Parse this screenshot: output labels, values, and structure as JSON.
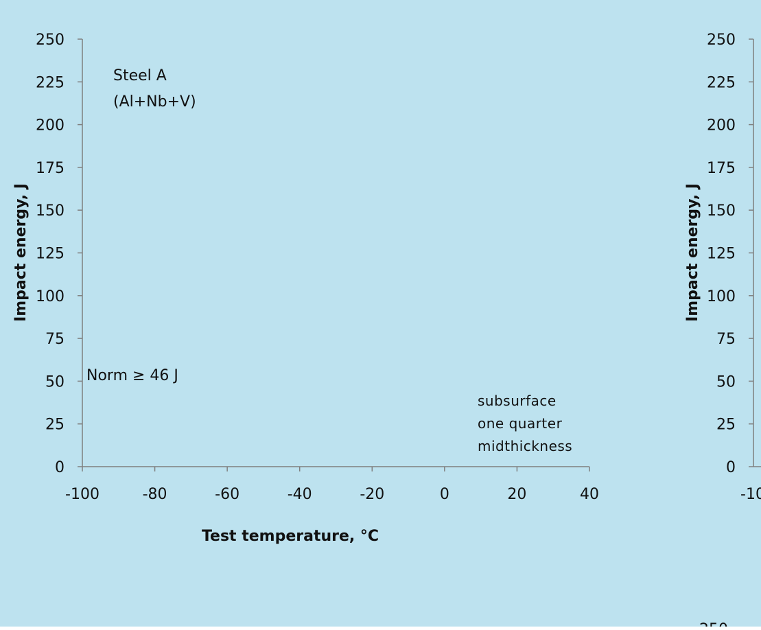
{
  "background_color": "#bde2ef",
  "chart_data": [
    {
      "type": "scatter",
      "xlabel": "Test temperature, °C",
      "ylabel": "Impact energy, J",
      "xlim": [
        -100,
        40
      ],
      "ylim": [
        0,
        250
      ],
      "x_ticks": [
        "-100",
        "-80",
        "-60",
        "-40",
        "-20",
        "0",
        "20",
        "40"
      ],
      "y_ticks": [
        "0",
        "25",
        "50",
        "75",
        "100",
        "125",
        "150",
        "175",
        "200",
        "225",
        "250"
      ],
      "annotation_title": [
        "Steel A",
        "(Al+Nb+V)"
      ],
      "norm_label": "Norm ≥ 46 J",
      "norm_value": 46,
      "legend": [
        "subsurface",
        "one quarter",
        "midthickness"
      ],
      "series": []
    },
    {
      "type": "scatter",
      "ylabel": "Impact energy, J",
      "y_ticks": [
        "0",
        "25",
        "50",
        "75",
        "100",
        "125",
        "150",
        "175",
        "200",
        "225",
        "250"
      ],
      "x_tick_partial": "-10",
      "series": []
    }
  ],
  "cropped_tick_fragment": "250"
}
